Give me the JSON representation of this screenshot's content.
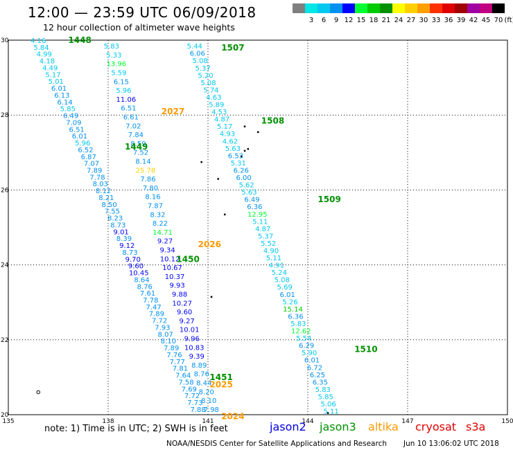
{
  "title": "12:00 — 23:59 UTC 06/09/2018",
  "subtitle": "12 hour collection of altimeter wave heights",
  "scale": {
    "unit": "(ft)",
    "bins": [
      {
        "label": "",
        "color": "#7f7f7f"
      },
      {
        "label": "3",
        "color": "#00e5e5"
      },
      {
        "label": "6",
        "color": "#00c8ee"
      },
      {
        "label": "9",
        "color": "#0090f0"
      },
      {
        "label": "12",
        "color": "#0000ff"
      },
      {
        "label": "15",
        "color": "#00ff30"
      },
      {
        "label": "18",
        "color": "#00cc00"
      },
      {
        "label": "21",
        "color": "#009000"
      },
      {
        "label": "24",
        "color": "#ffff00"
      },
      {
        "label": "27",
        "color": "#ffd000"
      },
      {
        "label": "30",
        "color": "#ffa000"
      },
      {
        "label": "33",
        "color": "#ff3000"
      },
      {
        "label": "36",
        "color": "#e00000"
      },
      {
        "label": "39",
        "color": "#a00000"
      },
      {
        "label": "42",
        "color": "#a000a0"
      },
      {
        "label": "45",
        "color": "#c00080"
      },
      {
        "label": "70",
        "color": "#000000"
      }
    ]
  },
  "axes": {
    "lon_ticks": [
      "135",
      "138",
      "141",
      "144",
      "147",
      "150"
    ],
    "lat_ticks": [
      "20",
      "22",
      "24",
      "26",
      "28",
      "30"
    ]
  },
  "note": "note: 1) Time is in UTC; 2) SWH is in feet",
  "satellites": [
    {
      "name": "jason2",
      "color": "#0000e0"
    },
    {
      "name": "jason3",
      "color": "#009000"
    },
    {
      "name": "altika",
      "color": "#ff9900"
    },
    {
      "name": "cryosat",
      "color": "#dd0000"
    },
    {
      "name": "s3a",
      "color": "#dd0000"
    }
  ],
  "credit": "NOAA/NESDIS Center for Satellite Applications and Research",
  "timestamp": "Jun 10 13:06:02 UTC 2018",
  "tracks": [
    {
      "label": "1448",
      "color": "#009000",
      "lab_lon": 136.8,
      "lab_lat": 30.0,
      "start_lon": 135.9,
      "start_lat": 30.0,
      "end_lon": 140.7,
      "end_lat": 20.15,
      "values": [
        "4.16",
        "5.84",
        "4.99",
        "4.18",
        "4.49",
        "5.17",
        "5.01",
        "6.01",
        "6.13",
        "6.14",
        "5.85",
        "6.49",
        "7.09",
        "6.51",
        "6.01",
        "5.96",
        "6.52",
        "6.87",
        "7.07",
        "7.89",
        "7.78",
        "8.03",
        "8.12",
        "8.21",
        "8.50",
        "7.55",
        "8.23",
        "8.73",
        "9.01",
        "8.39",
        "9.12",
        "8.73",
        "9.70",
        "9.60",
        "10.45",
        "8.64",
        "8.76",
        "7.61",
        "7.78",
        "7.47",
        "7.89",
        "7.72",
        "7.93",
        "8.07",
        "8.10",
        "7.89",
        "7.76",
        "7.77",
        "7.81",
        "7.64",
        "7.58",
        "7.69",
        "7.72",
        "7.73",
        "7.88"
      ]
    },
    {
      "label": "2027",
      "color": "#ff9900",
      "lab_lon": 139.6,
      "lab_lat": 28.1,
      "start_lon": 138.1,
      "start_lat": 29.85,
      "end_lon": 141.1,
      "end_lat": 20.15,
      "values": [
        "5.83",
        "5.33",
        "13.96",
        "5.59",
        "6.15",
        "5.96",
        "11.06",
        "6.51",
        "6.61",
        "7.02",
        "7.84",
        "8.59",
        "7.52",
        "8.14",
        "25.78",
        "7.86",
        "7.80",
        "8.16",
        "7.87",
        "8.32",
        "8.22",
        "14.71",
        "9.27",
        "9.34",
        "10.12",
        "10.67",
        "10.37",
        "9.93",
        "9.88",
        "10.27",
        "9.60",
        "9.27",
        "10.01",
        "9.96",
        "10.83",
        "9.39",
        "8.89",
        "8.76",
        "8.44",
        "8.20",
        "8.10",
        "7.98"
      ]
    },
    {
      "label": "1507",
      "color": "#009000",
      "lab_lon": 141.4,
      "lab_lat": 29.8,
      "start_lon": 140.6,
      "start_lat": 29.85,
      "end_lon": 144.7,
      "end_lat": 20.1,
      "values": [
        "5.44",
        "6.06",
        "5.08",
        "5.37",
        "5.20",
        "5.08",
        "5.74",
        "4.63",
        "5.89",
        "4.53",
        "4.87",
        "5.17",
        "4.93",
        "4.62",
        "5.63",
        "6.53",
        "5.31",
        "6.26",
        "6.00",
        "5.62",
        "5.63",
        "6.49",
        "6.36",
        "12.95",
        "5.11",
        "4.87",
        "5.37",
        "5.52",
        "4.90",
        "5.11",
        "4.91",
        "5.24",
        "5.08",
        "5.69",
        "6.01",
        "5.26",
        "15.14",
        "6.36",
        "5.83",
        "12.62",
        "5.54",
        "6.29",
        "5.90",
        "6.01",
        "6.72",
        "6.25",
        "6.35",
        "5.83",
        "5.85",
        "5.06",
        "5.11"
      ]
    }
  ],
  "pass_labels": [
    {
      "text": "1508",
      "color": "#009000",
      "lon": 142.6,
      "lat": 27.85
    },
    {
      "text": "1509",
      "color": "#009000",
      "lon": 144.3,
      "lat": 25.75
    },
    {
      "text": "1510",
      "color": "#009000",
      "lon": 145.4,
      "lat": 21.75
    },
    {
      "text": "1449",
      "color": "#009000",
      "lon": 138.5,
      "lat": 27.15
    },
    {
      "text": "1450",
      "color": "#009000",
      "lon": 140.05,
      "lat": 24.15
    },
    {
      "text": "2026",
      "color": "#ff9900",
      "lon": 140.7,
      "lat": 24.55
    },
    {
      "text": "1451",
      "color": "#009000",
      "lon": 141.05,
      "lat": 21.0
    },
    {
      "text": "2025",
      "color": "#ff9900",
      "lon": 141.05,
      "lat": 20.8
    },
    {
      "text": "2024",
      "color": "#ff9900",
      "lon": 141.4,
      "lat": 19.95
    }
  ],
  "islands": [
    {
      "lon": 141.1,
      "lat": 23.15
    },
    {
      "lon": 142.1,
      "lat": 27.05
    },
    {
      "lon": 142.2,
      "lat": 27.1
    },
    {
      "lon": 142.0,
      "lat": 26.9
    },
    {
      "lon": 141.5,
      "lat": 25.35
    },
    {
      "lon": 141.3,
      "lat": 26.3
    },
    {
      "lon": 140.8,
      "lat": 26.75
    },
    {
      "lon": 142.1,
      "lat": 27.7
    },
    {
      "lon": 142.5,
      "lat": 27.55
    },
    {
      "lon": 144.6,
      "lat": 20.05
    }
  ],
  "marker": {
    "lon": 135.9,
    "lat": 20.6
  }
}
